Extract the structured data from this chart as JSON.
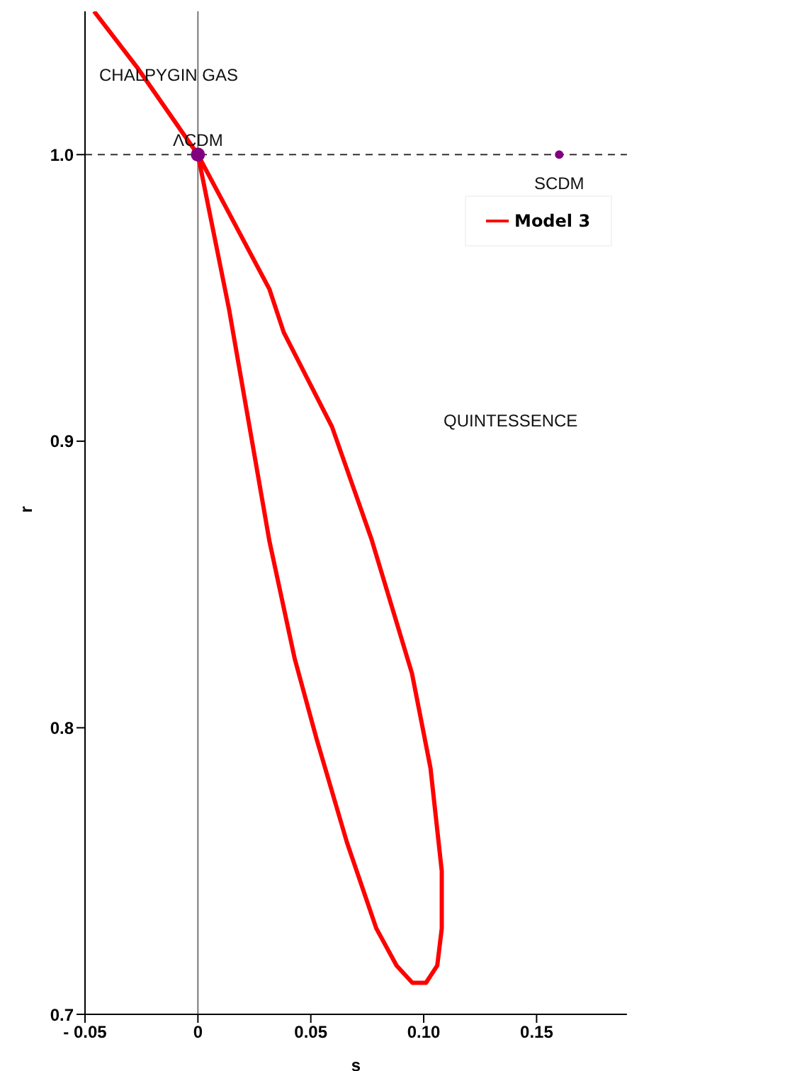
{
  "chart_data": {
    "type": "line",
    "xlabel": "s",
    "ylabel": "r",
    "xlim": [
      -0.05,
      0.19
    ],
    "ylim": [
      0.7,
      1.05
    ],
    "xticks": [
      {
        "value": -0.05,
        "label": "- 0.05"
      },
      0,
      0.05,
      {
        "value": 0.1,
        "label": "0.10"
      },
      0.15
    ],
    "yticks": [
      0.7,
      0.8,
      0.9,
      {
        "value": 1,
        "label": "1.0"
      }
    ],
    "grid": false,
    "legend": "top right",
    "ref_lines": [
      {
        "axis": "y",
        "value": 1,
        "color": "#333333",
        "line_style": "dashed"
      },
      {
        "axis": "x",
        "value": 0,
        "color": "#777777",
        "line_style": "solid"
      }
    ],
    "annotations": [
      {
        "text": "ΛCDM",
        "x": 0,
        "y": 1
      },
      {
        "text": "SCDM",
        "x": 0.16,
        "y": 1
      },
      "CHALPYGIN GAS",
      "QUINTESSENCE"
    ],
    "series": [
      {
        "name": "Model 3",
        "color": "#ff0000",
        "marker": "none",
        "line_style": "solid",
        "x": [
          -0.046,
          -0.0265,
          -0.0071,
          0,
          0.0317,
          0.038,
          0.0594,
          0.0768,
          0.0948,
          0.103,
          0.108,
          0.108,
          0.106,
          0.101,
          0.095,
          0.088,
          0.079,
          0.066,
          0.0526,
          0.0429,
          0.0317,
          0.0138,
          0
        ],
        "values": [
          1.05,
          1.03,
          1.008,
          1,
          0.953,
          0.938,
          0.905,
          0.866,
          0.819,
          0.786,
          0.75,
          0.73,
          0.717,
          0.711,
          0.711,
          0.717,
          0.73,
          0.76,
          0.796,
          0.824,
          0.865,
          0.946,
          1
        ]
      },
      {
        "type": "scatter",
        "color": "#800080",
        "marker": "circle",
        "x": [
          0
        ],
        "values": [
          1
        ]
      },
      {
        "type": "scatter",
        "color": "#800080",
        "marker": "circle",
        "x": [
          0.16
        ],
        "values": [
          1
        ]
      }
    ]
  }
}
